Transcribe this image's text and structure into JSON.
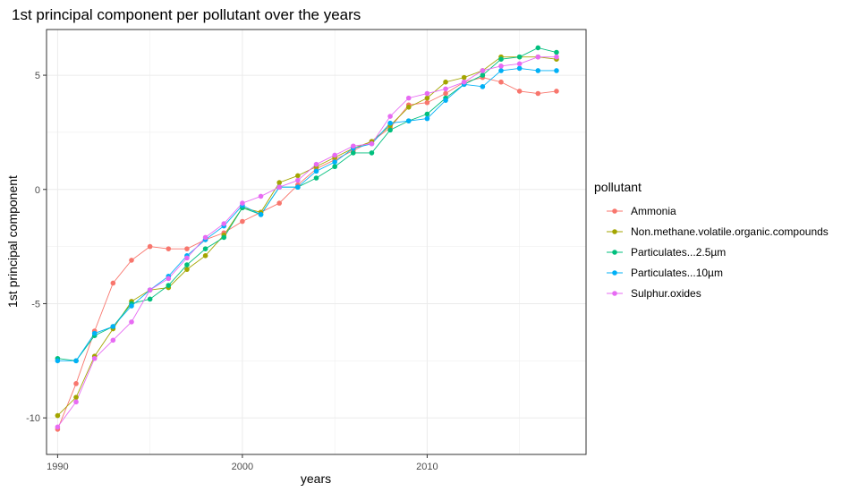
{
  "chart_data": {
    "type": "line",
    "title": "1st principal component per pollutant over the years",
    "xlabel": "years",
    "ylabel": "1st principal component",
    "xlim": [
      1989.4,
      2018.6
    ],
    "ylim": [
      -11.6,
      7.0
    ],
    "x_ticks": [
      1990,
      2000,
      2010
    ],
    "y_ticks": [
      -10,
      -5,
      0,
      5
    ],
    "x_minor": [
      1995,
      2005,
      2015
    ],
    "y_minor": [
      -7.5,
      -2.5,
      2.5
    ],
    "grid": true,
    "legend_title": "pollutant",
    "legend_position": "right",
    "x": [
      1990,
      1991,
      1992,
      1993,
      1994,
      1995,
      1996,
      1997,
      1998,
      1999,
      2000,
      2001,
      2002,
      2003,
      2004,
      2005,
      2006,
      2007,
      2008,
      2009,
      2010,
      2011,
      2012,
      2013,
      2014,
      2015,
      2016,
      2017
    ],
    "series": [
      {
        "name": "Ammonia",
        "color": "#F8766D",
        "values": [
          -10.5,
          -8.5,
          -6.2,
          -4.1,
          -3.1,
          -2.5,
          -2.6,
          -2.6,
          -2.2,
          -1.9,
          -1.4,
          -1.0,
          -0.6,
          0.2,
          0.9,
          1.3,
          1.7,
          2.1,
          2.7,
          3.7,
          3.8,
          4.2,
          4.7,
          4.9,
          4.7,
          4.3,
          4.2,
          4.3
        ]
      },
      {
        "name": "Non.methane.volatile.organic.compounds",
        "color": "#A3A500",
        "values": [
          -9.9,
          -9.1,
          -7.3,
          -6.1,
          -4.9,
          -4.4,
          -4.3,
          -3.5,
          -2.9,
          -2.0,
          -0.8,
          -1.0,
          0.3,
          0.6,
          1.0,
          1.4,
          1.8,
          2.1,
          2.8,
          3.6,
          4.0,
          4.7,
          4.9,
          5.2,
          5.8,
          5.8,
          5.8,
          5.7
        ]
      },
      {
        "name": "Particulates...2.5µm",
        "color": "#00BF7D",
        "values": [
          -7.4,
          -7.5,
          -6.4,
          -6.0,
          -5.0,
          -4.8,
          -4.2,
          -3.3,
          -2.6,
          -2.1,
          -0.8,
          -1.1,
          0.1,
          0.1,
          0.5,
          1.0,
          1.6,
          1.6,
          2.6,
          3.0,
          3.3,
          4.0,
          4.6,
          5.0,
          5.7,
          5.8,
          6.2,
          6.0
        ]
      },
      {
        "name": "Particulates...10µm",
        "color": "#00B0F6",
        "values": [
          -7.5,
          -7.5,
          -6.3,
          -6.0,
          -5.1,
          -4.4,
          -3.8,
          -2.9,
          -2.2,
          -1.6,
          -0.7,
          -1.1,
          0.1,
          0.1,
          0.8,
          1.2,
          1.8,
          2.0,
          2.9,
          3.0,
          3.1,
          3.9,
          4.6,
          4.5,
          5.2,
          5.3,
          5.2,
          5.2
        ]
      },
      {
        "name": "Sulphur.oxides",
        "color": "#E76BF3",
        "values": [
          -10.4,
          -9.3,
          -7.4,
          -6.6,
          -5.8,
          -4.4,
          -3.9,
          -3.0,
          -2.1,
          -1.5,
          -0.6,
          -0.3,
          0.1,
          0.4,
          1.1,
          1.5,
          1.9,
          2.0,
          3.2,
          4.0,
          4.2,
          4.4,
          4.7,
          5.2,
          5.4,
          5.5,
          5.8,
          5.8
        ]
      }
    ]
  }
}
